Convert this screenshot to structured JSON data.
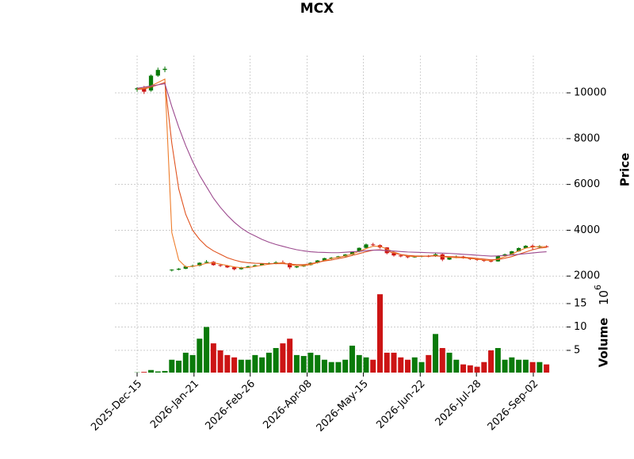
{
  "chart_data": {
    "type": "candlestick",
    "title": "MCX",
    "ylabel": "Price",
    "y2label": "Volume",
    "y2_offset": {
      "base": "10",
      "exponent": "6"
    },
    "x": [
      0,
      1,
      2,
      3,
      4,
      5,
      6,
      7,
      8,
      9,
      10,
      11,
      12,
      13,
      14,
      15,
      16,
      17,
      18,
      19,
      20,
      21,
      22,
      23,
      24,
      25,
      26,
      27,
      28,
      29,
      30,
      31,
      32,
      33,
      34,
      35,
      36,
      37,
      38,
      39,
      40,
      41,
      42,
      43,
      44,
      45,
      46,
      47,
      48,
      49,
      50,
      51,
      52,
      53,
      54,
      55,
      56,
      57,
      58,
      59
    ],
    "open": [
      10150,
      10200,
      10100,
      10750,
      11000,
      2250,
      2280,
      2320,
      2420,
      2450,
      2580,
      2620,
      2480,
      2450,
      2380,
      2300,
      2380,
      2420,
      2470,
      2540,
      2560,
      2600,
      2560,
      2380,
      2420,
      2480,
      2580,
      2680,
      2780,
      2800,
      2860,
      2940,
      3060,
      3230,
      3380,
      3350,
      3250,
      3000,
      2900,
      2860,
      2820,
      2850,
      2880,
      2860,
      2950,
      2720,
      2820,
      2850,
      2780,
      2740,
      2700,
      2660,
      2640,
      2880,
      2950,
      3080,
      3220,
      3320,
      3250,
      3300
    ],
    "high": [
      10250,
      10300,
      10800,
      11100,
      11150,
      2300,
      2350,
      2450,
      2500,
      2600,
      2700,
      2650,
      2520,
      2480,
      2420,
      2400,
      2450,
      2500,
      2560,
      2600,
      2650,
      2680,
      2580,
      2450,
      2500,
      2600,
      2700,
      2800,
      2830,
      2880,
      2960,
      3080,
      3250,
      3420,
      3450,
      3380,
      3260,
      3050,
      2950,
      2900,
      2880,
      2900,
      2920,
      3000,
      2980,
      2850,
      2900,
      2880,
      2800,
      2760,
      2720,
      2700,
      2900,
      2980,
      3100,
      3250,
      3350,
      3380,
      3350,
      3340
    ],
    "low": [
      10050,
      9950,
      10050,
      10700,
      10900,
      2200,
      2250,
      2300,
      2380,
      2430,
      2550,
      2450,
      2400,
      2350,
      2250,
      2280,
      2350,
      2400,
      2450,
      2500,
      2520,
      2550,
      2300,
      2350,
      2400,
      2460,
      2550,
      2650,
      2720,
      2780,
      2840,
      2920,
      3040,
      3200,
      3300,
      3200,
      2950,
      2850,
      2820,
      2780,
      2800,
      2820,
      2820,
      2840,
      2650,
      2700,
      2780,
      2760,
      2700,
      2660,
      2620,
      2600,
      2630,
      2860,
      2930,
      3060,
      3200,
      3150,
      3220,
      3240
    ],
    "close": [
      10200,
      10050,
      10750,
      11000,
      11050,
      2280,
      2320,
      2420,
      2450,
      2580,
      2620,
      2480,
      2450,
      2380,
      2300,
      2380,
      2420,
      2470,
      2540,
      2560,
      2600,
      2560,
      2380,
      2420,
      2480,
      2580,
      2680,
      2780,
      2800,
      2860,
      2940,
      3060,
      3230,
      3380,
      3350,
      3250,
      3000,
      2900,
      2860,
      2820,
      2850,
      2880,
      2860,
      2950,
      2720,
      2820,
      2850,
      2780,
      2740,
      2700,
      2660,
      2640,
      2880,
      2950,
      3080,
      3220,
      3320,
      3250,
      3300,
      3280
    ],
    "volume": [
      0.3,
      0.4,
      0.8,
      0.5,
      0.6,
      3.0,
      2.8,
      4.5,
      4.0,
      7.5,
      10.0,
      6.5,
      5.0,
      4.0,
      3.5,
      3.0,
      3.0,
      4.0,
      3.5,
      4.5,
      5.5,
      6.5,
      7.5,
      4.0,
      3.8,
      4.5,
      4.0,
      3.0,
      2.5,
      2.5,
      3.0,
      6.0,
      4.0,
      3.5,
      3.0,
      17.0,
      4.5,
      4.5,
      3.5,
      3.0,
      3.5,
      2.5,
      4.0,
      8.5,
      5.5,
      4.5,
      3.0,
      2.0,
      1.8,
      1.5,
      2.5,
      5.0,
      5.5,
      3.0,
      3.5,
      3.0,
      3.0,
      2.5,
      2.5,
      2.0
    ],
    "up_color": "#0a7a0a",
    "down_color": "#cc1414",
    "series": [
      {
        "color": "#ee7d2b",
        "values": [
          10200,
          10200,
          10300,
          10450,
          10600,
          3900,
          2700,
          2400,
          2420,
          2480,
          2560,
          2580,
          2520,
          2460,
          2400,
          2360,
          2370,
          2420,
          2470,
          2520,
          2560,
          2580,
          2500,
          2450,
          2450,
          2500,
          2590,
          2680,
          2760,
          2820,
          2880,
          2960,
          3080,
          3200,
          3300,
          3300,
          3180,
          3050,
          2940,
          2870,
          2850,
          2860,
          2870,
          2900,
          2850,
          2820,
          2800,
          2800,
          2770,
          2730,
          2700,
          2670,
          2750,
          2850,
          2960,
          3100,
          3220,
          3270,
          3290,
          3280
        ]
      },
      {
        "color": "#e0531f",
        "values": [
          10150,
          10170,
          10250,
          10350,
          10450,
          7800,
          5800,
          4700,
          4000,
          3600,
          3300,
          3100,
          2950,
          2800,
          2700,
          2620,
          2580,
          2560,
          2550,
          2540,
          2540,
          2540,
          2520,
          2500,
          2500,
          2540,
          2600,
          2660,
          2700,
          2760,
          2820,
          2900,
          2980,
          3060,
          3130,
          3150,
          3100,
          3000,
          2940,
          2900,
          2880,
          2870,
          2870,
          2880,
          2860,
          2850,
          2840,
          2820,
          2800,
          2770,
          2740,
          2710,
          2720,
          2780,
          2850,
          2950,
          3050,
          3150,
          3220,
          3250
        ]
      },
      {
        "color": "#9c4a8e",
        "values": [
          10200,
          10250,
          10300,
          10350,
          10400,
          9400,
          8500,
          7700,
          7000,
          6400,
          5900,
          5400,
          5000,
          4650,
          4350,
          4100,
          3900,
          3750,
          3600,
          3480,
          3380,
          3300,
          3220,
          3150,
          3100,
          3060,
          3040,
          3030,
          3020,
          3020,
          3040,
          3060,
          3080,
          3110,
          3130,
          3130,
          3110,
          3090,
          3070,
          3050,
          3040,
          3030,
          3020,
          3010,
          3000,
          2990,
          2970,
          2950,
          2930,
          2910,
          2890,
          2870,
          2880,
          2900,
          2920,
          2950,
          2980,
          3010,
          3040,
          3060
        ]
      }
    ],
    "xlim": [
      -3.2,
      61.9
    ],
    "xticks": [
      {
        "value": 0,
        "label": "2025-Dec-15"
      },
      {
        "value": 8.2,
        "label": "2026-Jan-21"
      },
      {
        "value": 16.3,
        "label": "2026-Feb-26"
      },
      {
        "value": 24.5,
        "label": "2026-Apr-08"
      },
      {
        "value": 32.6,
        "label": "2026-May-15"
      },
      {
        "value": 40.8,
        "label": "2026-Jun-22"
      },
      {
        "value": 48.9,
        "label": "2026-Jul-28"
      },
      {
        "value": 57.1,
        "label": "2026-Sep-02"
      }
    ],
    "ylim": [
      1800,
      11630
    ],
    "yticks": [
      2000,
      4000,
      6000,
      8000,
      10000
    ],
    "y2lim": [
      0.25,
      19.4
    ],
    "y2ticks": [
      5,
      10,
      15
    ],
    "grid": true
  }
}
